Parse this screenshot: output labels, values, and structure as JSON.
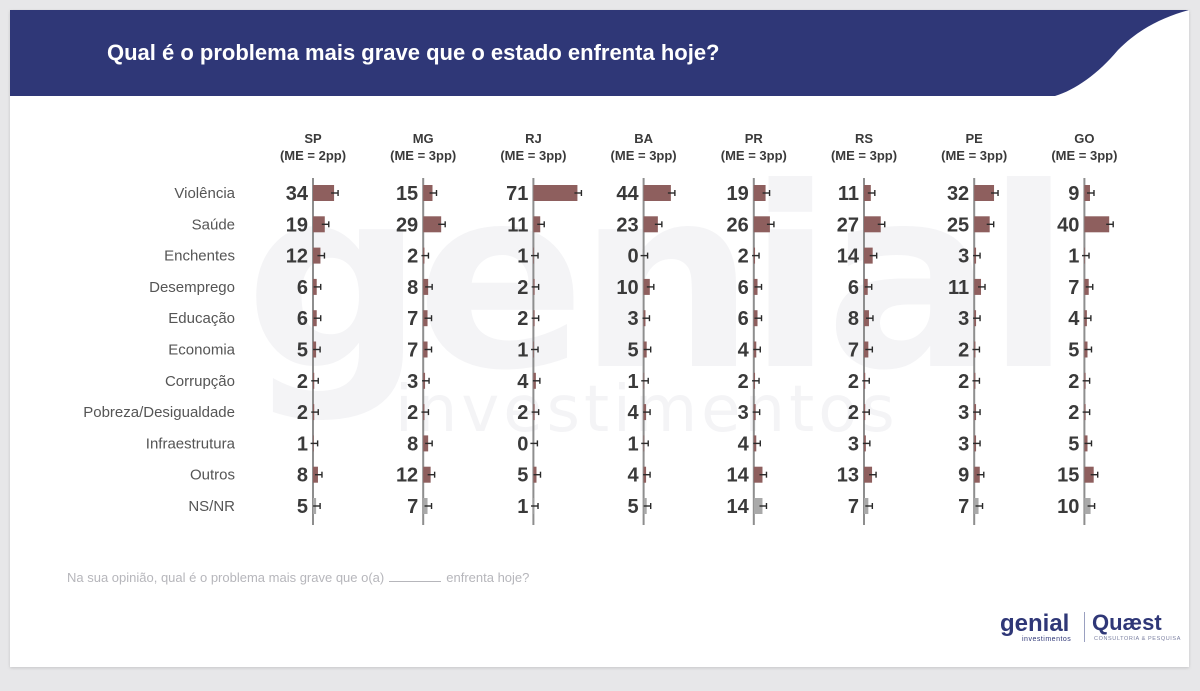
{
  "slide": {
    "title": "Qual é o problema mais grave que o estado enfrenta hoje?",
    "footnote_prefix": "Na sua opinião, qual é o problema mais grave que o(a)",
    "footnote_suffix": "enfrenta hoje?",
    "logo_left": "genial",
    "logo_left_sub": "investimentos",
    "logo_right": "Quæst",
    "logo_right_sub": "CONSULTORIA & PESQUISA",
    "watermark_main": "genial",
    "watermark_sub": "investimentos"
  },
  "colors": {
    "banner": "#2f3777",
    "bar": "#8e5f5e",
    "bar_light": "#a9a9a9",
    "axis": "#8e8e8e",
    "value_text": "#3a3a3a",
    "category_text": "#555555",
    "header_text": "#3a3a3a"
  },
  "chart_data": {
    "type": "bar",
    "orientation": "horizontal",
    "layout": "small-multiples",
    "categories": [
      "Violência",
      "Saúde",
      "Enchentes",
      "Desemprego",
      "Educação",
      "Economia",
      "Corrupção",
      "Pobreza/Desigualdade",
      "Infraestrutura",
      "Outros",
      "NS/NR"
    ],
    "series": [
      {
        "name": "SP",
        "margin": "(ME = 2pp)",
        "values": [
          34,
          19,
          12,
          6,
          6,
          5,
          2,
          2,
          1,
          8,
          5
        ]
      },
      {
        "name": "MG",
        "margin": "(ME = 3pp)",
        "values": [
          15,
          29,
          2,
          8,
          7,
          7,
          3,
          2,
          8,
          12,
          7
        ]
      },
      {
        "name": "RJ",
        "margin": "(ME = 3pp)",
        "values": [
          71,
          11,
          1,
          2,
          2,
          1,
          4,
          2,
          0,
          5,
          1
        ]
      },
      {
        "name": "BA",
        "margin": "(ME = 3pp)",
        "values": [
          44,
          23,
          0,
          10,
          3,
          5,
          1,
          4,
          1,
          4,
          5
        ]
      },
      {
        "name": "PR",
        "margin": "(ME = 3pp)",
        "values": [
          19,
          26,
          2,
          6,
          6,
          4,
          2,
          3,
          4,
          14,
          14
        ]
      },
      {
        "name": "RS",
        "margin": "(ME = 3pp)",
        "values": [
          11,
          27,
          14,
          6,
          8,
          7,
          2,
          2,
          3,
          13,
          7
        ]
      },
      {
        "name": "PE",
        "margin": "(ME = 3pp)",
        "values": [
          32,
          25,
          3,
          11,
          3,
          2,
          2,
          3,
          3,
          9,
          7
        ]
      },
      {
        "name": "GO",
        "margin": "(ME = 3pp)",
        "values": [
          9,
          40,
          1,
          7,
          4,
          5,
          2,
          2,
          5,
          15,
          10
        ]
      }
    ],
    "light_category": "NS/NR",
    "error_bars": true,
    "xlim": [
      0,
      71
    ]
  }
}
